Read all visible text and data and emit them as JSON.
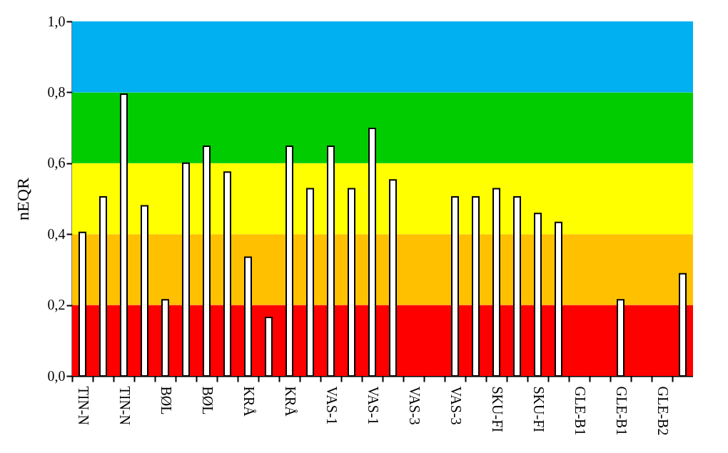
{
  "chart_data": {
    "type": "bar",
    "ylabel": "nEQR",
    "categories": [
      "TIN-N",
      null,
      "TIN-N",
      null,
      "BØL",
      null,
      "BØL",
      null,
      "KRÅ",
      null,
      "KRÅ",
      null,
      "VAS-1",
      null,
      "VAS-1",
      null,
      "VAS-3",
      null,
      "VAS-3",
      null,
      "SKU-FI",
      null,
      "SKU-FI",
      null,
      "GLE-B1",
      null,
      "GLE-B1",
      null,
      "GLE-B2",
      null
    ],
    "values": [
      0.405,
      0.505,
      0.795,
      0.48,
      0.215,
      0.6,
      0.648,
      0.575,
      0.335,
      0.165,
      0.648,
      0.528,
      0.648,
      0.528,
      0.698,
      0.553,
      null,
      null,
      0.505,
      0.505,
      0.528,
      0.505,
      0.458,
      0.433,
      null,
      null,
      0.215,
      null,
      null,
      0.288
    ],
    "color": "#ffffff",
    "ylim": [
      0,
      1
    ],
    "yticks": [
      {
        "value": 0,
        "label": "0,0"
      },
      {
        "value": 0.2,
        "label": "0,2"
      },
      {
        "value": 0.4,
        "label": "0,4"
      },
      {
        "value": 0.6,
        "label": "0,6"
      },
      {
        "value": 0.8,
        "label": "0,8"
      },
      {
        "value": 1,
        "label": "1,0"
      }
    ],
    "bands": [
      {
        "axis": "y",
        "from": 0,
        "to": 0.2,
        "color": "#ff0000"
      },
      {
        "axis": "y",
        "from": 0.2,
        "to": 0.4,
        "color": "#ffc000"
      },
      {
        "axis": "y",
        "from": 0.4,
        "to": 0.6,
        "color": "#ffff00"
      },
      {
        "axis": "y",
        "from": 0.6,
        "to": 0.8,
        "color": "#00cc00"
      },
      {
        "axis": "y",
        "from": 0.8,
        "to": 1.0,
        "color": "#00b0f0"
      }
    ],
    "grid": false
  }
}
